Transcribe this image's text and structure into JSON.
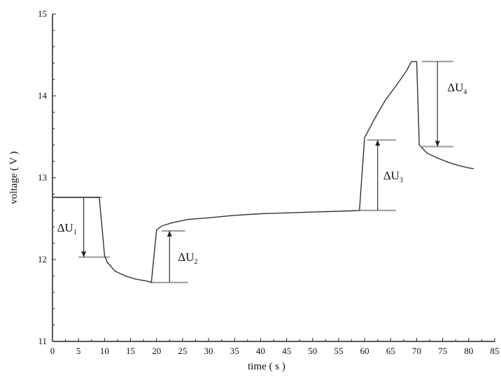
{
  "chart_data": {
    "type": "line",
    "title": "",
    "xlabel": "time ( s )",
    "ylabel": "voltage ( V )",
    "xlim": [
      0,
      85
    ],
    "ylim": [
      11,
      15
    ],
    "x_ticks": [
      0,
      5,
      10,
      15,
      20,
      25,
      30,
      35,
      40,
      45,
      50,
      55,
      60,
      65,
      70,
      75,
      80,
      85
    ],
    "y_ticks": [
      11,
      12,
      13,
      14,
      15
    ],
    "grid": false,
    "legend": "none",
    "series": [
      {
        "x": [
          0,
          9,
          10,
          10.5,
          12,
          14,
          16,
          18,
          19,
          20,
          21,
          23,
          26,
          30,
          35,
          40,
          45,
          50,
          55,
          59,
          60,
          62,
          64,
          66,
          68,
          69,
          70,
          70.5,
          72,
          74,
          76,
          78,
          80,
          81
        ],
        "y": [
          12.76,
          12.76,
          12.05,
          11.97,
          11.86,
          11.8,
          11.76,
          11.74,
          11.72,
          12.36,
          12.41,
          12.45,
          12.49,
          12.51,
          12.54,
          12.56,
          12.57,
          12.58,
          12.59,
          12.6,
          13.49,
          13.73,
          13.95,
          14.12,
          14.3,
          14.42,
          14.42,
          13.4,
          13.3,
          13.24,
          13.19,
          13.15,
          13.12,
          13.11
        ]
      }
    ],
    "annotations": [
      {
        "label": "ΔU",
        "sub": "1",
        "x": 6,
        "from": 12.76,
        "to": 12.03,
        "arrow": "down",
        "lines": [
          [
            0,
            9.5,
            12.76
          ],
          [
            5,
            11,
            12.03
          ]
        ]
      },
      {
        "label": "ΔU",
        "sub": "2",
        "x": 22.5,
        "from": 11.72,
        "to": 12.35,
        "arrow": "up",
        "lines": [
          [
            19,
            26,
            11.72
          ],
          [
            21,
            25.5,
            12.35
          ]
        ]
      },
      {
        "label": "ΔU",
        "sub": "3",
        "x": 62.5,
        "from": 12.6,
        "to": 13.46,
        "arrow": "up",
        "lines": [
          [
            59,
            66,
            12.6
          ],
          [
            60.5,
            66,
            13.46
          ]
        ]
      },
      {
        "label": "ΔU",
        "sub": "4",
        "x": 74,
        "from": 14.42,
        "to": 13.38,
        "arrow": "down",
        "lines": [
          [
            71,
            77,
            14.42
          ],
          [
            71,
            77,
            13.38
          ]
        ]
      }
    ]
  }
}
